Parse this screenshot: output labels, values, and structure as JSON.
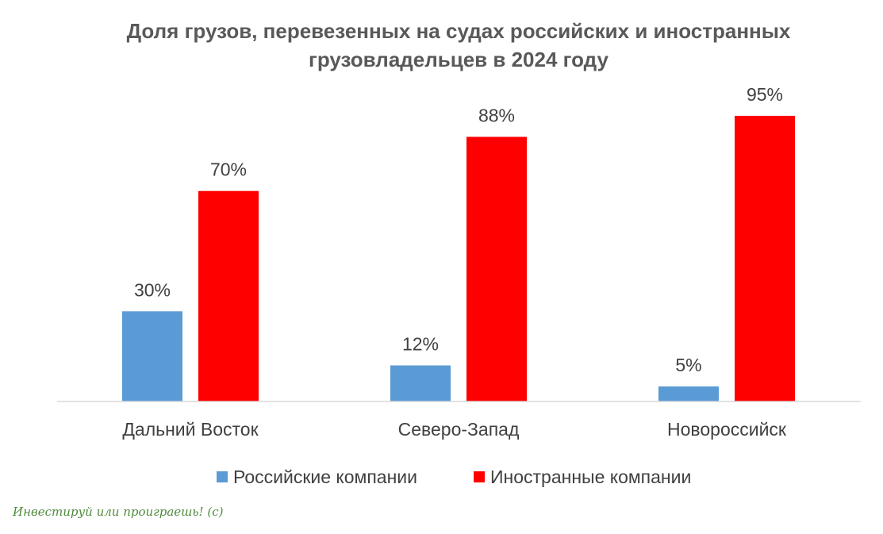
{
  "chart_data": {
    "type": "bar",
    "title": "Доля грузов, перевезенных на судах российских и иностранных грузовладельцев в 2024 году",
    "title_lines": [
      "Доля грузов, перевезенных на судах российских и иностранных",
      "грузовладельцев в 2024 году"
    ],
    "categories": [
      "Дальний Восток",
      "Северо-Запад",
      "Новороссийск"
    ],
    "series": [
      {
        "name": "Российские компании",
        "values": [
          30,
          12,
          5
        ],
        "labels": [
          "30%",
          "12%",
          "5%"
        ],
        "color": "#5b9bd5"
      },
      {
        "name": "Иностранные компании",
        "values": [
          70,
          88,
          95
        ],
        "labels": [
          "70%",
          "88%",
          "95%"
        ],
        "color": "#ff0000"
      }
    ],
    "ylim": [
      0,
      100
    ],
    "grid": false,
    "legend_position": "bottom"
  },
  "watermark": "Инвестируй или проиграешь! (с)"
}
